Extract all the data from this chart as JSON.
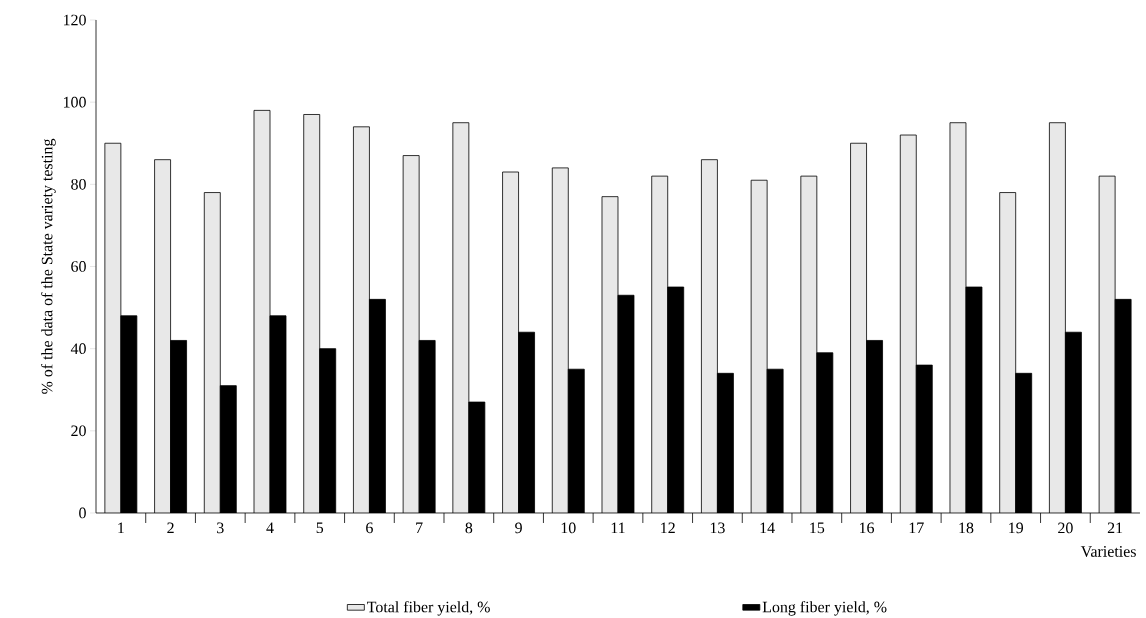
{
  "chart_data": {
    "type": "bar",
    "xlabel": "Varieties",
    "ylabel": "% of the data of the State variety testing",
    "categories": [
      "1",
      "2",
      "3",
      "4",
      "5",
      "6",
      "7",
      "8",
      "9",
      "10",
      "11",
      "12",
      "13",
      "14",
      "15",
      "16",
      "17",
      "18",
      "19",
      "20",
      "21"
    ],
    "series": [
      {
        "name": "Total fiber yield, %",
        "color": "#e8e8e8",
        "values": [
          90,
          86,
          78,
          98,
          97,
          94,
          87,
          95,
          83,
          84,
          77,
          82,
          86,
          81,
          82,
          90,
          92,
          95,
          78,
          95,
          82
        ]
      },
      {
        "name": "Long fiber yield, %",
        "color": "#000000",
        "values": [
          48,
          42,
          31,
          48,
          40,
          52,
          42,
          27,
          44,
          35,
          53,
          55,
          34,
          35,
          39,
          42,
          36,
          55,
          34,
          44,
          52
        ]
      }
    ],
    "ylim": [
      0,
      120
    ],
    "yticks": [
      0,
      20,
      40,
      60,
      80,
      100,
      120
    ],
    "legend": "bottom"
  }
}
